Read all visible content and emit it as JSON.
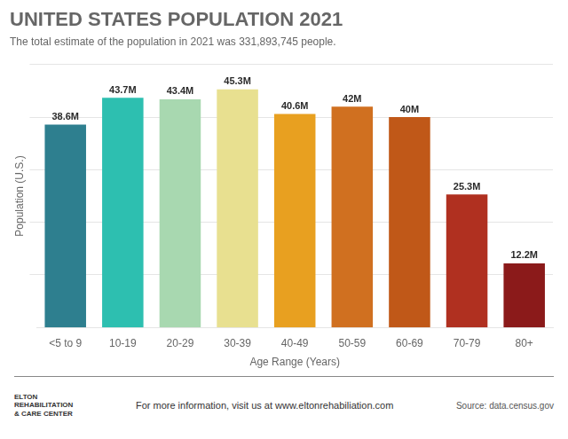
{
  "chart_data": {
    "type": "bar",
    "title": "UNITED STATES POPULATION 2021",
    "subtitle": "The total estimate of the population in 2021 was 331,893,745 people.",
    "categories": [
      "<5 to 9",
      "10-19",
      "20-29",
      "30-39",
      "40-49",
      "50-59",
      "60-69",
      "70-79",
      "80+"
    ],
    "values": [
      38.6,
      43.7,
      43.4,
      45.3,
      40.6,
      42.0,
      40.0,
      25.3,
      12.2
    ],
    "value_labels": [
      "38.6M",
      "43.7M",
      "43.4M",
      "45.3M",
      "40.6M",
      "42M",
      "40M",
      "25.3M",
      "12.2M"
    ],
    "data_labels": true,
    "colors": [
      "#2e7f8f",
      "#2dbfb0",
      "#a8d8b0",
      "#e8e090",
      "#e8a020",
      "#d07020",
      "#c05818",
      "#b03020",
      "#8b1a1a"
    ],
    "xlabel": "Age Range (Years)",
    "ylabel": "Population (U.S.)",
    "ylim": [
      0,
      50
    ],
    "yticks": [
      10,
      20,
      30,
      40,
      50
    ],
    "tick_labels": "x",
    "grid": true,
    "annotations": [
      "ELTON\nREHABILITATION\n& CARE CENTER",
      "For more information, visit us at www.eltonrehabiliation.com",
      "Source: data.census.gov"
    ]
  }
}
